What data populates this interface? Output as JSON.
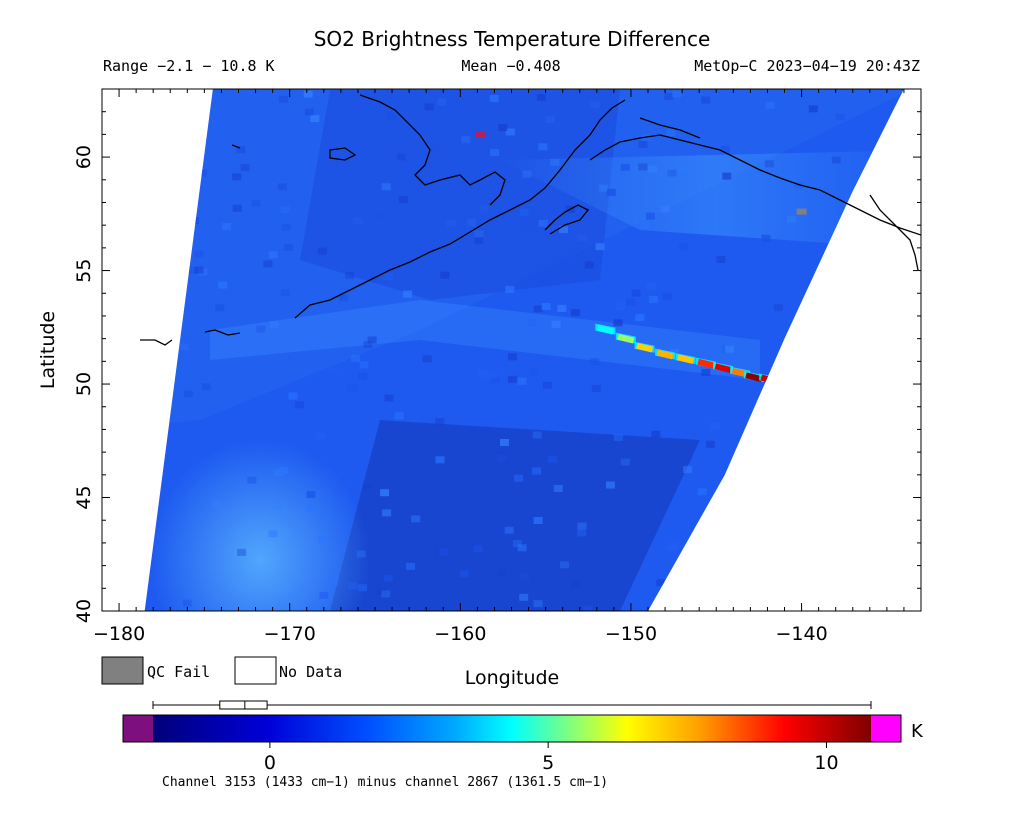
{
  "chart_data": {
    "type": "heatmap",
    "title": "SO2 Brightness Temperature Difference",
    "range_text": "Range −2.1 − 10.8 K",
    "mean_text": "Mean −0.408",
    "sat_text": "MetOp−C 2023−04−19 20:43Z",
    "xlabel": "Longitude",
    "ylabel": "Latitude",
    "xlim": [
      -181,
      -133
    ],
    "ylim": [
      40,
      63
    ],
    "x_ticks": [
      -180,
      -170,
      -160,
      -150,
      -140
    ],
    "x_tick_labels": [
      "−180",
      "−170",
      "−160",
      "−150",
      "−140"
    ],
    "y_ticks": [
      40,
      45,
      50,
      55,
      60
    ],
    "y_tick_labels": [
      "40",
      "45",
      "50",
      "55",
      "60"
    ],
    "grid": false,
    "swath_edges": {
      "west": [
        [
          -174.5,
          63
        ],
        [
          -178.5,
          40
        ]
      ],
      "east": [
        [
          -134.0,
          63
        ],
        [
          -137.0,
          58.5
        ],
        [
          -141.0,
          52.0
        ],
        [
          -144.5,
          46.0
        ],
        [
          -149.0,
          40
        ]
      ]
    },
    "plume": {
      "points": [
        {
          "lon": -151.5,
          "lat": 52.4,
          "value": 3.0
        },
        {
          "lon": -150.3,
          "lat": 52.0,
          "value": 4.2
        },
        {
          "lon": -149.2,
          "lat": 51.6,
          "value": 6.0
        },
        {
          "lon": -148.0,
          "lat": 51.3,
          "value": 6.6
        },
        {
          "lon": -146.8,
          "lat": 51.1,
          "value": 6.2
        },
        {
          "lon": -145.6,
          "lat": 50.9,
          "value": 8.5
        },
        {
          "lon": -144.6,
          "lat": 50.7,
          "value": 9.5
        },
        {
          "lon": -143.6,
          "lat": 50.5,
          "value": 7.5
        },
        {
          "lon": -142.8,
          "lat": 50.3,
          "value": 10.6
        },
        {
          "lon": -141.9,
          "lat": 50.2,
          "value": 9.8
        }
      ]
    },
    "qc_fail_pixels": [
      {
        "lon": -158.8,
        "lat": 61.0
      },
      {
        "lon": -140.0,
        "lat": 57.6
      }
    ],
    "legend": {
      "qc_fail": "QC Fail",
      "no_data": "No Data"
    },
    "colorbar": {
      "min": -2.1,
      "max": 10.8,
      "ticks": [
        0,
        5,
        10
      ],
      "tick_labels": [
        "0",
        "5",
        "10"
      ],
      "unit": "K",
      "under_color": "#7f0f7f",
      "over_color": "#ff00ff",
      "box_whisker": {
        "min": -2.1,
        "q1": -0.9,
        "median": -0.45,
        "q3": -0.05,
        "max": 10.8
      },
      "caption": "Channel 3153 (1433 cm−1) minus channel 2867 (1361.5 cm−1)"
    },
    "colors": {
      "background_field": "#1e5af0",
      "qc_fail": "#808080",
      "coast": "#000000"
    }
  }
}
